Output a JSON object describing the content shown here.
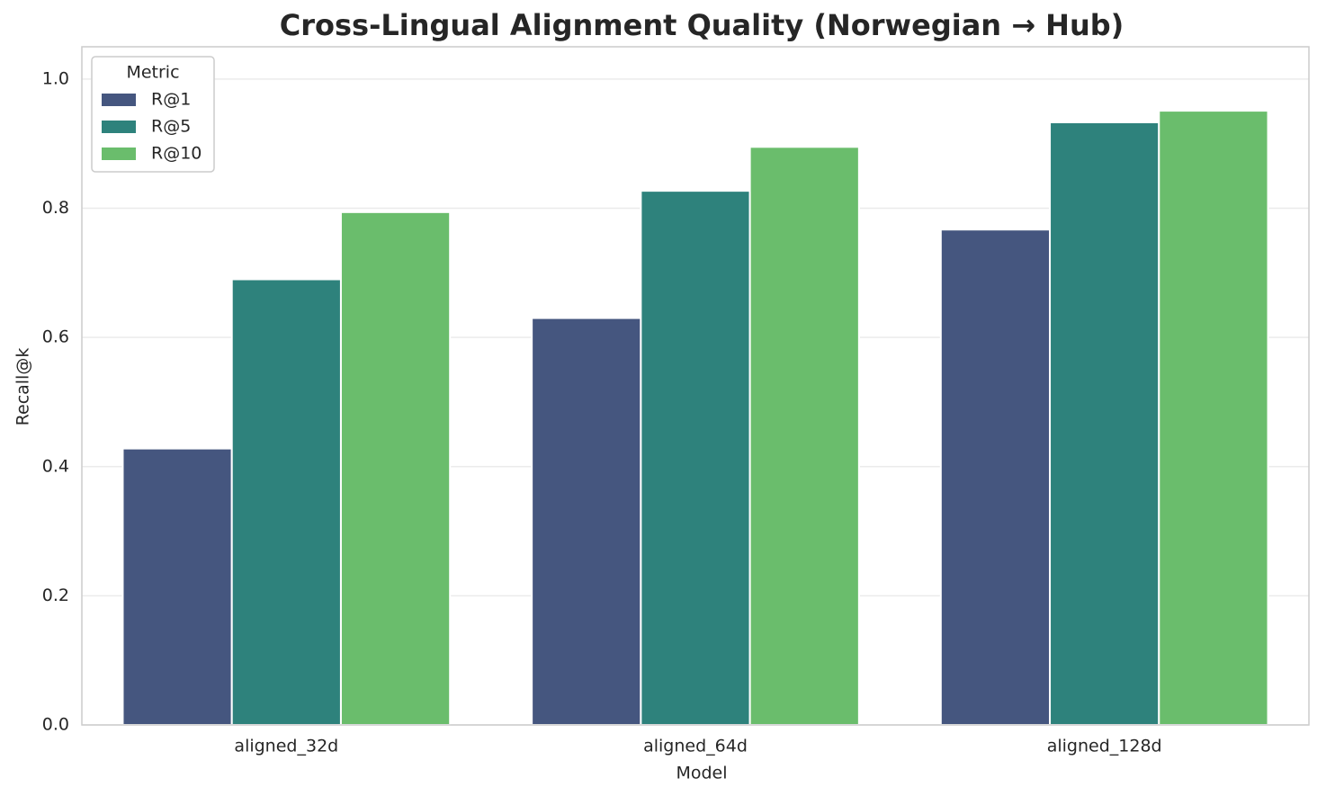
{
  "chart_data": {
    "type": "bar",
    "title": "Cross-Lingual Alignment Quality (Norwegian → Hub)",
    "x_label": "Model",
    "y_label": "Recall@k",
    "categories": [
      "aligned_32d",
      "aligned_64d",
      "aligned_128d"
    ],
    "series": [
      {
        "name": "R@1",
        "color": "#45567f",
        "values": [
          0.428,
          0.63,
          0.767
        ]
      },
      {
        "name": "R@5",
        "color": "#2e827c",
        "values": [
          0.69,
          0.827,
          0.933
        ]
      },
      {
        "name": "R@10",
        "color": "#6abd6c",
        "values": [
          0.794,
          0.895,
          0.951
        ]
      }
    ],
    "legend_title": "Metric",
    "legend_position": "upper-left",
    "ylim": [
      0,
      1.05
    ],
    "yticks": [
      {
        "value": 0,
        "label": "0.0"
      },
      0.2,
      0.4,
      0.6,
      0.8,
      {
        "value": 1,
        "label": "1.0"
      }
    ],
    "grid": true
  }
}
